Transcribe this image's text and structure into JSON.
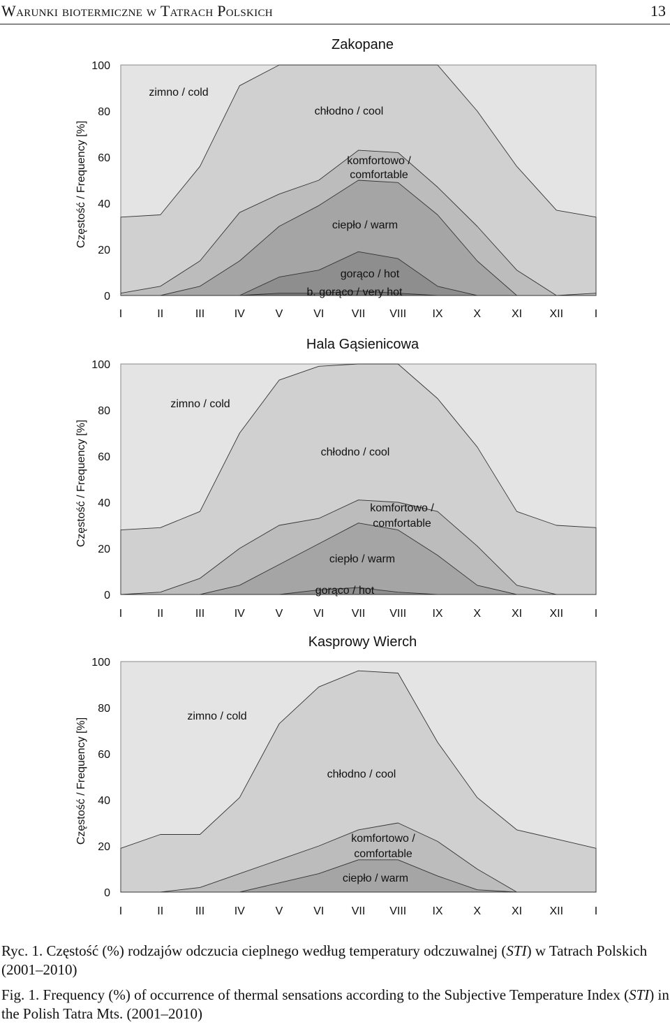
{
  "header": {
    "running_title": "Warunki biotermiczne w Tatrach Polskich",
    "page_number": "13"
  },
  "shared": {
    "ylabel": "Częstość / Frequency [%]",
    "months": [
      "I",
      "II",
      "III",
      "IV",
      "V",
      "VI",
      "VII",
      "VIII",
      "IX",
      "X",
      "XI",
      "XII",
      "I"
    ],
    "yticks": [
      0,
      20,
      40,
      60,
      80,
      100
    ],
    "ylim": [
      0,
      100
    ],
    "colors": {
      "zimno": "#e4e4e4",
      "chlodno": "#d0d0d0",
      "komfortowo": "#bcbcbc",
      "cieplo": "#a5a5a5",
      "goraco": "#8e8e8e",
      "bgoraco": "#777777",
      "line": "#333333"
    }
  },
  "chart_data": [
    {
      "type": "area",
      "stacked": true,
      "title": "Zakopane",
      "x": [
        "I",
        "II",
        "III",
        "IV",
        "V",
        "VI",
        "VII",
        "VIII",
        "IX",
        "X",
        "XI",
        "XII",
        "I"
      ],
      "ylabel": "Częstość / Frequency [%]",
      "ylim": [
        0,
        100
      ],
      "boundaries": {
        "bgoraco": [
          0,
          0,
          0,
          0,
          1,
          1,
          2,
          1,
          0,
          0,
          0,
          0,
          0
        ],
        "goraco": [
          0,
          0,
          0,
          0,
          8,
          11,
          19,
          16,
          4,
          0,
          0,
          0,
          0
        ],
        "cieplo": [
          0,
          0,
          4,
          15,
          30,
          39,
          50,
          49,
          35,
          15,
          0,
          0,
          0
        ],
        "komfortowo": [
          1,
          4,
          15,
          36,
          44,
          50,
          63,
          62,
          47,
          30,
          11,
          0,
          1
        ],
        "chlodno": [
          34,
          35,
          56,
          91,
          100,
          100,
          100,
          100,
          100,
          80,
          56,
          37,
          34
        ]
      },
      "series": [
        {
          "name": "zimno / cold",
          "key": "zimno"
        },
        {
          "name": "chłodno / cool",
          "key": "chlodno"
        },
        {
          "name": "komfortowo / comfortable",
          "key": "komfortowo"
        },
        {
          "name": "ciepło / warm",
          "key": "cieplo"
        },
        {
          "name": "gorąco / hot",
          "key": "goraco"
        },
        {
          "name": "b. gorąco / very hot",
          "key": "bgoraco"
        }
      ]
    },
    {
      "type": "area",
      "stacked": true,
      "title": "Hala Gąsienicowa",
      "x": [
        "I",
        "II",
        "III",
        "IV",
        "V",
        "VI",
        "VII",
        "VIII",
        "IX",
        "X",
        "XI",
        "XII",
        "I"
      ],
      "ylabel": "Częstość / Frequency [%]",
      "ylim": [
        0,
        100
      ],
      "boundaries": {
        "goraco": [
          0,
          0,
          0,
          0,
          0,
          2,
          3,
          1,
          0,
          0,
          0,
          0,
          0
        ],
        "cieplo": [
          0,
          0,
          0,
          4,
          13,
          22,
          31,
          28,
          17,
          4,
          0,
          0,
          0
        ],
        "komfortowo": [
          0,
          1,
          7,
          20,
          30,
          33,
          41,
          40,
          36,
          21,
          4,
          0,
          0
        ],
        "chlodno": [
          28,
          29,
          36,
          70,
          93,
          99,
          100,
          100,
          85,
          64,
          36,
          30,
          29
        ]
      },
      "series": [
        {
          "name": "zimno / cold",
          "key": "zimno"
        },
        {
          "name": "chłodno / cool",
          "key": "chlodno"
        },
        {
          "name": "komfortowo / comfortable",
          "key": "komfortowo"
        },
        {
          "name": "ciepło / warm",
          "key": "cieplo"
        },
        {
          "name": "gorąco / hot",
          "key": "goraco"
        }
      ]
    },
    {
      "type": "area",
      "stacked": true,
      "title": "Kasprowy Wierch",
      "x": [
        "I",
        "II",
        "III",
        "IV",
        "V",
        "VI",
        "VII",
        "VIII",
        "IX",
        "X",
        "XI",
        "XII",
        "I"
      ],
      "ylabel": "Częstość / Frequency [%]",
      "ylim": [
        0,
        100
      ],
      "boundaries": {
        "cieplo": [
          0,
          0,
          0,
          0,
          4,
          8,
          14,
          14,
          7,
          1,
          0,
          0,
          0
        ],
        "komfortowo": [
          0,
          0,
          2,
          8,
          14,
          20,
          27,
          30,
          22,
          10,
          0,
          0,
          0
        ],
        "chlodno": [
          19,
          25,
          25,
          41,
          73,
          89,
          96,
          95,
          65,
          41,
          27,
          23,
          19
        ]
      },
      "series": [
        {
          "name": "zimno / cold",
          "key": "zimno"
        },
        {
          "name": "chłodno / cool",
          "key": "chlodno"
        },
        {
          "name": "komfortowo / comfortable",
          "key": "komfortowo"
        },
        {
          "name": "ciepło / warm",
          "key": "cieplo"
        }
      ]
    }
  ],
  "caption": {
    "pl_prefix": "Ryc. 1. Częstość (%) rodzajów odczucia cieplnego według temperatury odczuwalnej (",
    "pl_abbr": "STI",
    "pl_suffix": ") w Tatrach Polskich (2001–2010)",
    "en_prefix": "Fig. 1. Frequency (%) of occurrence of thermal sensations according to the Subjective Temperature Index (",
    "en_abbr": "STI",
    "en_suffix": ") in the Polish Tatra Mts. (2001–2010)"
  }
}
